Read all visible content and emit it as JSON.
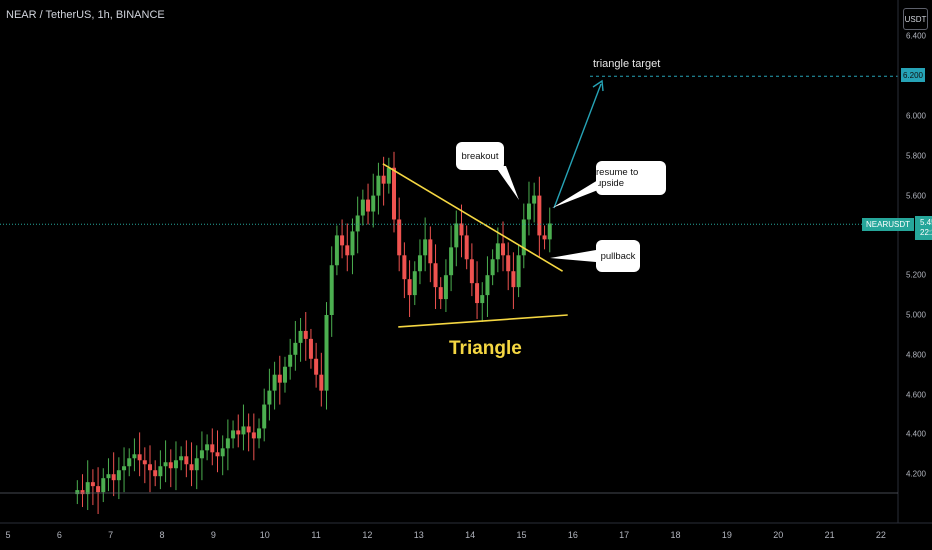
{
  "header": {
    "symbol_title": "NEAR / TetherUS, 1h, BINANCE",
    "currency": "USDT"
  },
  "price_axis": {
    "labels": [
      "6.400",
      "6.000",
      "5.800",
      "5.600",
      "5.200",
      "5.000",
      "4.800",
      "4.600",
      "4.400",
      "4.200"
    ]
  },
  "time_axis": {
    "labels": [
      "5",
      "6",
      "7",
      "8",
      "9",
      "10",
      "11",
      "12",
      "13",
      "14",
      "15",
      "16",
      "17",
      "18",
      "19",
      "20",
      "21",
      "22"
    ]
  },
  "last_price": {
    "symbol": "NEARUSDT",
    "value": "5.456",
    "countdown": "22:22"
  },
  "target": {
    "label": "triangle target",
    "value": "6.200"
  },
  "annotations": {
    "breakout": "breakout",
    "resume": "resume to upside",
    "pullback": "pullback",
    "pattern": "Triangle"
  },
  "colors": {
    "up": "#26a69a",
    "down": "#ef5350",
    "body_up": "#4caf50",
    "trendline": "#f5d742",
    "target": "#26a3b6"
  },
  "chart_data": {
    "type": "candlestick",
    "ylim": [
      4.1,
      6.5
    ],
    "x_unit": "day",
    "close": [
      4.12,
      4.1,
      4.16,
      4.14,
      4.11,
      4.18,
      4.2,
      4.17,
      4.22,
      4.24,
      4.28,
      4.3,
      4.27,
      4.25,
      4.22,
      4.19,
      4.24,
      4.26,
      4.23,
      4.27,
      4.29,
      4.25,
      4.22,
      4.28,
      4.32,
      4.35,
      4.31,
      4.29,
      4.33,
      4.38,
      4.42,
      4.4,
      4.44,
      4.41,
      4.38,
      4.43,
      4.55,
      4.62,
      4.7,
      4.66,
      4.74,
      4.8,
      4.86,
      4.92,
      4.88,
      4.78,
      4.7,
      4.62,
      5.0,
      5.25,
      5.4,
      5.35,
      5.3,
      5.42,
      5.5,
      5.58,
      5.52,
      5.6,
      5.7,
      5.66,
      5.74,
      5.48,
      5.3,
      5.18,
      5.1,
      5.22,
      5.3,
      5.38,
      5.26,
      5.14,
      5.08,
      5.2,
      5.34,
      5.46,
      5.4,
      5.28,
      5.16,
      5.06,
      5.1,
      5.2,
      5.28,
      5.36,
      5.3,
      5.22,
      5.14,
      5.3,
      5.48,
      5.56,
      5.6,
      5.4,
      5.38,
      5.46
    ],
    "open": [
      4.1,
      4.12,
      4.1,
      4.16,
      4.14,
      4.11,
      4.18,
      4.2,
      4.17,
      4.22,
      4.24,
      4.28,
      4.3,
      4.27,
      4.25,
      4.22,
      4.19,
      4.24,
      4.26,
      4.23,
      4.27,
      4.29,
      4.25,
      4.22,
      4.28,
      4.32,
      4.35,
      4.31,
      4.29,
      4.33,
      4.38,
      4.42,
      4.4,
      4.44,
      4.41,
      4.38,
      4.43,
      4.55,
      4.62,
      4.7,
      4.66,
      4.74,
      4.8,
      4.86,
      4.92,
      4.88,
      4.78,
      4.7,
      4.62,
      5.0,
      5.25,
      5.4,
      5.35,
      5.3,
      5.42,
      5.5,
      5.58,
      5.52,
      5.6,
      5.7,
      5.66,
      5.74,
      5.48,
      5.3,
      5.18,
      5.1,
      5.22,
      5.3,
      5.38,
      5.26,
      5.14,
      5.08,
      5.2,
      5.34,
      5.46,
      5.4,
      5.28,
      5.16,
      5.06,
      5.1,
      5.2,
      5.28,
      5.36,
      5.3,
      5.22,
      5.14,
      5.3,
      5.48,
      5.56,
      5.6,
      5.4,
      5.38
    ],
    "trendline_upper": {
      "start": [
        12.3,
        5.76
      ],
      "end": [
        15.8,
        5.22
      ]
    },
    "trendline_lower": {
      "start": [
        12.6,
        4.94
      ],
      "end": [
        15.9,
        5.0
      ]
    },
    "target_level": 6.2,
    "last_price_level": 5.456
  }
}
